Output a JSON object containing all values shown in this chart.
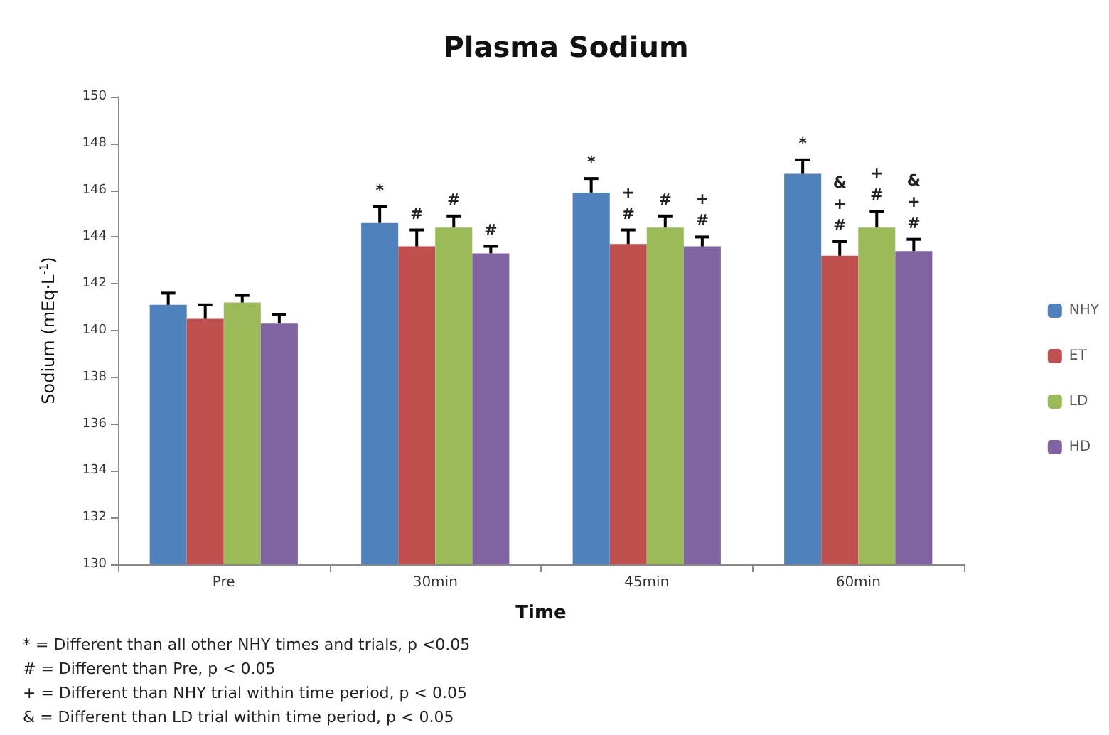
{
  "chart_data": {
    "type": "bar",
    "title": "Plasma Sodium",
    "xlabel": "Time",
    "ylabel": "Sodium (mEq·L$^{-1}$)",
    "categories": [
      "Pre",
      "30min",
      "45min",
      "60min"
    ],
    "series": [
      {
        "name": "NHY",
        "color": "#4f81bd",
        "values": [
          141.1,
          144.6,
          145.9,
          146.7
        ],
        "errors": [
          0.5,
          0.7,
          0.6,
          0.6
        ],
        "value_labels": [
          null,
          "*",
          "*",
          "*"
        ]
      },
      {
        "name": "ET",
        "color": "#c0504d",
        "values": [
          140.5,
          143.6,
          143.7,
          143.2
        ],
        "errors": [
          0.6,
          0.7,
          0.6,
          0.6
        ],
        "value_labels": [
          null,
          "#",
          "+\n#",
          "&\n+\n#"
        ]
      },
      {
        "name": "LD",
        "color": "#9bbb59",
        "values": [
          141.2,
          144.4,
          144.4,
          144.4
        ],
        "errors": [
          0.3,
          0.5,
          0.5,
          0.7
        ],
        "value_labels": [
          null,
          "#",
          "#",
          "+\n#"
        ]
      },
      {
        "name": "HD",
        "color": "#8064a2",
        "values": [
          140.3,
          143.3,
          143.6,
          143.4
        ],
        "errors": [
          0.4,
          0.3,
          0.4,
          0.5
        ],
        "value_labels": [
          null,
          "#",
          "+\n#",
          "&\n+\n#"
        ]
      }
    ],
    "ylim": [
      130,
      150
    ],
    "yticks": [
      130,
      132,
      134,
      136,
      138,
      140,
      142,
      144,
      146,
      148,
      150
    ],
    "grid": false,
    "legend": "right",
    "annotations": [
      "* = Different than all other NHY times and trials, p <0.05",
      "# = Different than Pre, p < 0.05",
      "+ = Different than NHY trial within time period, p < 0.05",
      "& = Different than LD trial within time period, p < 0.05"
    ]
  }
}
